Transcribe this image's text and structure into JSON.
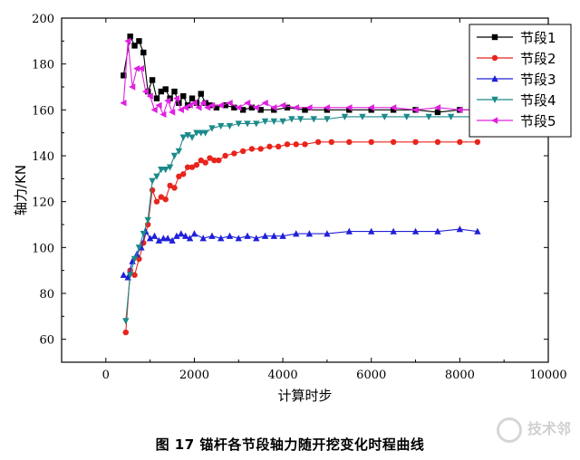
{
  "chart_data": {
    "type": "line",
    "title": "",
    "xlabel": "计算时步",
    "ylabel": "轴力/KN",
    "xlim": [
      -1000,
      10000
    ],
    "ylim": [
      50,
      200
    ],
    "xticks": [
      0,
      2000,
      4000,
      6000,
      8000,
      10000
    ],
    "yticks": [
      60,
      80,
      100,
      120,
      140,
      160,
      180,
      200
    ],
    "grid": false,
    "legend_position": "top-right",
    "series": [
      {
        "name": "节段1",
        "color": "#000000",
        "marker": "square",
        "x": [
          400,
          550,
          650,
          750,
          850,
          950,
          1050,
          1150,
          1250,
          1350,
          1450,
          1550,
          1650,
          1750,
          1850,
          1950,
          2050,
          2150,
          2250,
          2350,
          2500,
          2700,
          2900,
          3100,
          3300,
          3500,
          3800,
          4100,
          4500,
          5000,
          5500,
          6000,
          6500,
          7000,
          7500,
          8000,
          8400
        ],
        "y": [
          175,
          192,
          188,
          190,
          185,
          168,
          173,
          165,
          168,
          169,
          165,
          168,
          163,
          166,
          162,
          165,
          163,
          167,
          163,
          162,
          161,
          162,
          161,
          160,
          161,
          160,
          160,
          161,
          160,
          160,
          160,
          160,
          160,
          160,
          159,
          160,
          160
        ]
      },
      {
        "name": "节段2",
        "color": "#e8241c",
        "marker": "circle",
        "x": [
          450,
          550,
          650,
          750,
          850,
          950,
          1050,
          1150,
          1250,
          1350,
          1450,
          1550,
          1650,
          1750,
          1850,
          1950,
          2050,
          2150,
          2250,
          2350,
          2450,
          2550,
          2700,
          2900,
          3100,
          3300,
          3500,
          3700,
          3900,
          4100,
          4300,
          4500,
          4800,
          5100,
          5500,
          6000,
          6500,
          7000,
          7500,
          8000,
          8400
        ],
        "y": [
          63,
          90,
          88,
          95,
          102,
          110,
          125,
          120,
          122,
          121,
          127,
          126,
          131,
          132,
          135,
          135,
          136,
          138,
          137,
          139,
          138,
          138,
          140,
          141,
          142,
          143,
          143,
          144,
          144,
          145,
          145,
          145,
          146,
          146,
          146,
          146,
          146,
          146,
          146,
          146,
          146
        ]
      },
      {
        "name": "节段3",
        "color": "#2020d8",
        "marker": "triangle-up",
        "x": [
          400,
          500,
          600,
          700,
          800,
          900,
          1000,
          1100,
          1200,
          1300,
          1400,
          1500,
          1600,
          1700,
          1800,
          1900,
          2000,
          2200,
          2400,
          2600,
          2800,
          3000,
          3200,
          3400,
          3600,
          3800,
          4000,
          4300,
          4600,
          5000,
          5500,
          6000,
          6500,
          7000,
          7500,
          8000,
          8400
        ],
        "y": [
          88,
          87,
          94,
          97,
          100,
          107,
          104,
          105,
          103,
          104,
          104,
          103,
          105,
          106,
          105,
          104,
          106,
          104,
          105,
          104,
          105,
          104,
          105,
          104,
          105,
          105,
          105,
          106,
          106,
          106,
          107,
          107,
          107,
          107,
          107,
          108,
          107
        ]
      },
      {
        "name": "节段4",
        "color": "#1c8a8a",
        "marker": "triangle-down",
        "x": [
          450,
          550,
          650,
          750,
          850,
          950,
          1050,
          1150,
          1250,
          1350,
          1450,
          1550,
          1650,
          1750,
          1850,
          1950,
          2050,
          2150,
          2250,
          2400,
          2600,
          2800,
          3000,
          3200,
          3400,
          3600,
          3800,
          4000,
          4200,
          4400,
          4700,
          5000,
          5400,
          5800,
          6300,
          6800,
          7300,
          7800,
          8400
        ],
        "y": [
          68,
          88,
          95,
          100,
          106,
          112,
          129,
          131,
          134,
          134,
          135,
          140,
          142,
          148,
          149,
          148,
          150,
          150,
          150,
          152,
          153,
          153,
          154,
          154,
          154,
          155,
          155,
          155,
          156,
          156,
          156,
          156,
          157,
          157,
          157,
          157,
          157,
          157,
          157
        ]
      },
      {
        "name": "节段5",
        "color": "#e020e0",
        "marker": "triangle-left",
        "x": [
          400,
          500,
          600,
          700,
          800,
          900,
          1000,
          1100,
          1200,
          1300,
          1400,
          1500,
          1600,
          1700,
          1800,
          1900,
          2000,
          2100,
          2200,
          2300,
          2400,
          2600,
          2800,
          3000,
          3200,
          3400,
          3600,
          3800,
          4000,
          4300,
          4600,
          5000,
          5500,
          6000,
          6500,
          7000,
          7500,
          8000,
          8400
        ],
        "y": [
          163,
          190,
          170,
          178,
          178,
          168,
          166,
          160,
          162,
          158,
          164,
          159,
          165,
          160,
          161,
          162,
          163,
          161,
          163,
          161,
          162,
          162,
          163,
          161,
          163,
          161,
          163,
          161,
          162,
          161,
          161,
          161,
          161,
          161,
          161,
          160,
          161,
          160,
          160
        ]
      }
    ]
  },
  "caption": "图 17  锚杆各节段轴力随开挖变化时程曲线",
  "watermark": "技术邻"
}
